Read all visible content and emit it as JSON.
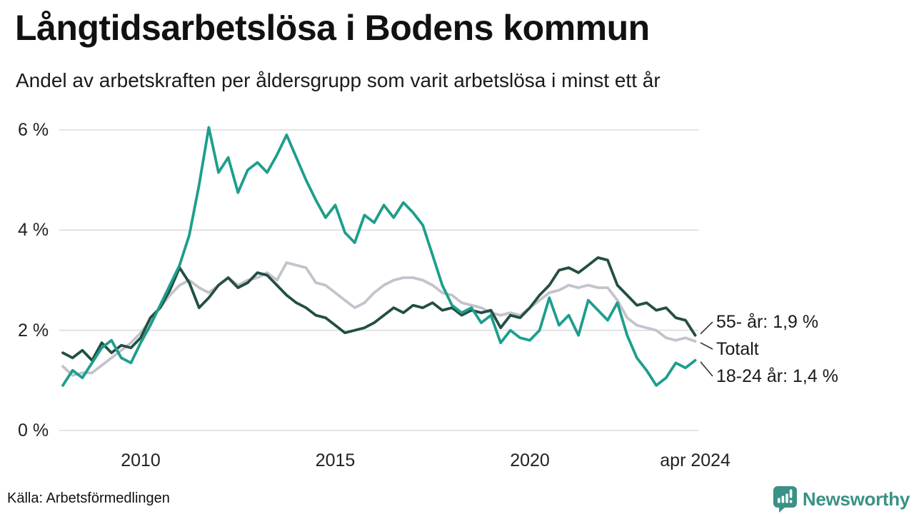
{
  "header": {
    "title": "Långtidsarbetslösa i Bodens kommun",
    "subtitle": "Andel av arbetskraften per åldersgrupp som varit arbetslösa i minst ett år"
  },
  "footer": {
    "source": "Källa: Arbetsförmedlingen",
    "brand": {
      "name": "Newsworthy",
      "icon": "bar-chart-speech-bubble-icon",
      "color": "#3a9186"
    }
  },
  "colors": {
    "background": "#ffffff",
    "text": "#1a1a1a",
    "gridline": "#dcdcdc",
    "connector": "#333333",
    "series_18_24": "#1e9e8c",
    "series_totalt": "#c5c2cd",
    "series_55": "#234f42"
  },
  "chart_data": {
    "type": "line",
    "title": "Långtidsarbetslösa i Bodens kommun",
    "subtitle": "Andel av arbetskraften per åldersgrupp som varit arbetslösa i minst ett år",
    "unit": "%",
    "grid": "horizontal",
    "legend_position": "end-of-line-labels",
    "xlim": [
      2008,
      2024.33
    ],
    "ylim": [
      0,
      6
    ],
    "x_start": 2008.0,
    "x_step": 0.25,
    "x_end": 2024.25,
    "yticks": [
      {
        "value": 6,
        "label": "6 %"
      },
      {
        "value": 4,
        "label": "4 %"
      },
      {
        "value": 2,
        "label": "2 %"
      },
      {
        "value": 0,
        "label": "0 %"
      }
    ],
    "xticks": [
      {
        "value": 2010,
        "label": "2010"
      },
      {
        "value": 2015,
        "label": "2015"
      },
      {
        "value": 2020,
        "label": "2020"
      },
      {
        "value": 2024.25,
        "label": "apr 2024"
      }
    ],
    "series": [
      {
        "name": "Totalt",
        "color": "#c5c2cd",
        "values": [
          1.28,
          1.1,
          1.15,
          1.15,
          1.3,
          1.45,
          1.6,
          1.75,
          1.95,
          2.2,
          2.45,
          2.7,
          2.9,
          3.0,
          2.85,
          2.75,
          2.9,
          3.05,
          2.9,
          3.0,
          3.05,
          3.15,
          3.0,
          3.35,
          3.3,
          3.25,
          2.95,
          2.9,
          2.75,
          2.6,
          2.45,
          2.55,
          2.75,
          2.9,
          3.0,
          3.05,
          3.05,
          3.0,
          2.9,
          2.75,
          2.7,
          2.55,
          2.5,
          2.45,
          2.35,
          2.3,
          2.35,
          2.3,
          2.45,
          2.6,
          2.75,
          2.8,
          2.9,
          2.85,
          2.9,
          2.85,
          2.85,
          2.6,
          2.25,
          2.1,
          2.05,
          2.0,
          1.85,
          1.8,
          1.85,
          1.78
        ]
      },
      {
        "name": "55- år",
        "color": "#234f42",
        "values": [
          1.55,
          1.45,
          1.6,
          1.4,
          1.75,
          1.55,
          1.7,
          1.65,
          1.85,
          2.25,
          2.45,
          2.8,
          3.25,
          2.95,
          2.45,
          2.65,
          2.9,
          3.05,
          2.85,
          2.95,
          3.15,
          3.1,
          2.9,
          2.7,
          2.55,
          2.45,
          2.3,
          2.25,
          2.1,
          1.95,
          2.0,
          2.05,
          2.15,
          2.3,
          2.45,
          2.35,
          2.5,
          2.45,
          2.55,
          2.4,
          2.45,
          2.3,
          2.4,
          2.35,
          2.4,
          2.05,
          2.3,
          2.25,
          2.45,
          2.7,
          2.9,
          3.2,
          3.25,
          3.15,
          3.3,
          3.45,
          3.4,
          2.9,
          2.7,
          2.5,
          2.55,
          2.4,
          2.45,
          2.25,
          2.2,
          1.9
        ]
      },
      {
        "name": "18-24 år",
        "color": "#1e9e8c",
        "values": [
          0.9,
          1.2,
          1.05,
          1.35,
          1.65,
          1.8,
          1.45,
          1.35,
          1.75,
          2.1,
          2.5,
          2.9,
          3.3,
          3.9,
          4.9,
          6.05,
          5.15,
          5.45,
          4.75,
          5.2,
          5.35,
          5.15,
          5.5,
          5.9,
          5.45,
          5.0,
          4.6,
          4.25,
          4.5,
          3.95,
          3.75,
          4.3,
          4.15,
          4.5,
          4.25,
          4.55,
          4.35,
          4.1,
          3.5,
          2.9,
          2.5,
          2.35,
          2.45,
          2.15,
          2.3,
          1.75,
          2.0,
          1.85,
          1.8,
          2.0,
          2.65,
          2.1,
          2.3,
          1.9,
          2.6,
          2.4,
          2.2,
          2.55,
          1.9,
          1.45,
          1.2,
          0.9,
          1.05,
          1.35,
          1.25,
          1.4
        ]
      }
    ],
    "annotations": [
      {
        "series": "55- år",
        "text": "55- år: 1,9 %",
        "last_value": 1.9
      },
      {
        "series": "Totalt",
        "text": "Totalt",
        "last_value": 1.78
      },
      {
        "series": "18-24 år",
        "text": "18-24 år: 1,4 %",
        "last_value": 1.4
      }
    ]
  }
}
